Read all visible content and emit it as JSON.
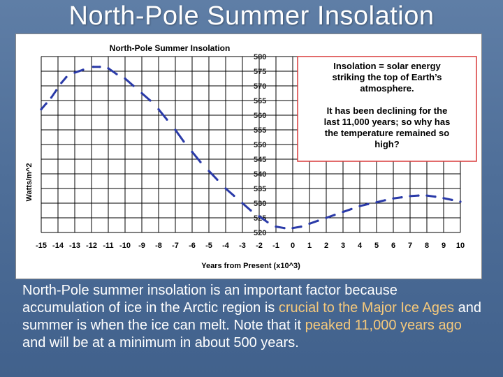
{
  "slide": {
    "title": "North-Pole Summer Insolation"
  },
  "caption": {
    "part1": "North-Pole summer insolation",
    "part2": " is an important factor because accumulation of ice in the Arctic region is ",
    "part3": "crucial to the Major Ice Ages",
    "part4": " and summer is when the ice can melt. Note that it ",
    "part5": "peaked 11,000 years ago",
    "part6": " and will be at a minimum in about 500 years."
  },
  "colors": {
    "series": "#2a3aa8",
    "callout_border": "#d83a3a",
    "highlight": "#f4c87c"
  },
  "chart_data": {
    "type": "line",
    "title": "North-Pole Summer Insolation",
    "xlabel": "Years from Present (x10^3)",
    "ylabel": "Watts/m^2",
    "xlim": [
      -15,
      10
    ],
    "ylim": [
      520,
      580
    ],
    "x_ticks": [
      "-15",
      "-14",
      "-13",
      "-12",
      "-11",
      "-10",
      "-9",
      "-8",
      "-7",
      "-6",
      "-5",
      "-4",
      "-3",
      "-2",
      "-1",
      "0",
      "1",
      "2",
      "3",
      "4",
      "5",
      "6",
      "7",
      "8",
      "9",
      "10"
    ],
    "y_ticks": [
      "580",
      "575",
      "570",
      "565",
      "560",
      "555",
      "550",
      "545",
      "540",
      "535",
      "530",
      "525",
      "520"
    ],
    "grid": true,
    "series": [
      {
        "x": [
          -15.0,
          -14.7,
          -14.4,
          -14.1,
          -13.8,
          -13.5,
          -13.0,
          -12.5,
          -11.9,
          -11.5,
          -11.0,
          -10.5,
          -10.0,
          -9.5,
          -9.0,
          -8.5,
          -8.0,
          -7.5,
          -7.0,
          -6.5,
          -6.0,
          -5.5,
          -5.0,
          -4.5,
          -4.0,
          -3.5,
          -3.0,
          -2.5,
          -2.0,
          -1.5,
          -1.0,
          -0.5,
          0.0,
          0.5,
          1.0,
          1.5,
          2.0,
          2.5,
          3.0,
          3.5,
          4.0,
          4.5,
          5.0,
          5.5,
          6.0,
          6.5,
          7.0,
          7.5,
          8.0,
          8.5,
          9.0,
          9.5,
          10.0
        ],
        "values": [
          562.0,
          564.0,
          566.0,
          568.5,
          571.0,
          573.0,
          574.5,
          575.5,
          576.5,
          576.5,
          576.0,
          574.0,
          572.5,
          570.0,
          567.5,
          565.0,
          562.0,
          558.5,
          555.0,
          551.0,
          547.5,
          544.0,
          541.0,
          538.0,
          535.0,
          532.5,
          530.0,
          527.5,
          525.5,
          523.5,
          522.0,
          521.5,
          521.5,
          522.0,
          523.0,
          524.0,
          525.0,
          526.0,
          527.0,
          528.0,
          529.0,
          529.7,
          530.3,
          531.0,
          531.6,
          532.0,
          532.4,
          532.6,
          532.6,
          532.2,
          531.7,
          531.1,
          530.5
        ]
      }
    ],
    "annotations": [
      "Insolation = solar energy striking the top of Earth’s atmosphere.",
      "It has been declining for the last 11,000 years; so why has the temperature remained so high?"
    ]
  }
}
